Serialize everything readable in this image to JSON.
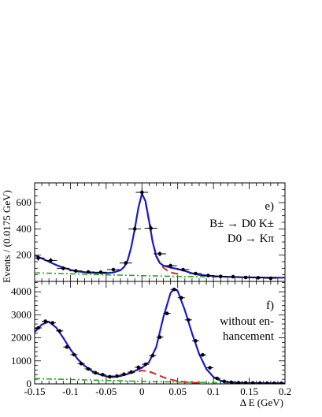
{
  "chart_data": {
    "type": "line",
    "xlabel": "Δ E (GeV)",
    "ylabel": "Events / (0.0175 GeV)",
    "xlim": [
      -0.15,
      0.2
    ],
    "x_ticks": [
      "-0.15",
      "-0.1",
      "-0.05",
      "0",
      "0.05",
      "0.1",
      "0.15",
      "0.2"
    ],
    "panels": [
      {
        "label": "e)",
        "annotation": [
          "B± → D0 K±",
          "D0 → Kπ"
        ],
        "ylim": [
          0,
          750
        ],
        "y_ticks": [
          "200",
          "400",
          "600"
        ],
        "points": [
          {
            "x": -0.145,
            "y": 178,
            "err": 20
          },
          {
            "x": -0.1275,
            "y": 160,
            "err": 18
          },
          {
            "x": -0.11,
            "y": 100,
            "err": 15
          },
          {
            "x": -0.0925,
            "y": 80,
            "err": 13
          },
          {
            "x": -0.075,
            "y": 72,
            "err": 12
          },
          {
            "x": -0.0575,
            "y": 70,
            "err": 12
          },
          {
            "x": -0.04,
            "y": 90,
            "err": 13
          },
          {
            "x": -0.0225,
            "y": 140,
            "err": 16
          },
          {
            "x": -0.01,
            "y": 400,
            "err": 25
          },
          {
            "x": 0.0,
            "y": 678,
            "err": 28
          },
          {
            "x": 0.0125,
            "y": 405,
            "err": 25
          },
          {
            "x": 0.025,
            "y": 210,
            "err": 18
          },
          {
            "x": 0.04,
            "y": 120,
            "err": 14
          },
          {
            "x": 0.0575,
            "y": 90,
            "err": 13
          },
          {
            "x": 0.075,
            "y": 60,
            "err": 11
          },
          {
            "x": 0.0925,
            "y": 45,
            "err": 10
          },
          {
            "x": 0.11,
            "y": 38,
            "err": 9
          },
          {
            "x": 0.1275,
            "y": 36,
            "err": 9
          },
          {
            "x": 0.145,
            "y": 30,
            "err": 8
          },
          {
            "x": 0.1625,
            "y": 28,
            "err": 8
          },
          {
            "x": 0.18,
            "y": 24,
            "err": 7
          }
        ],
        "series": [
          {
            "role": "total",
            "color": "#1a1acc",
            "x": [
              -0.15,
              -0.14,
              -0.13,
              -0.12,
              -0.11,
              -0.1,
              -0.09,
              -0.08,
              -0.07,
              -0.06,
              -0.05,
              -0.04,
              -0.03,
              -0.025,
              -0.02,
              -0.015,
              -0.01,
              -0.005,
              0.0,
              0.005,
              0.01,
              0.015,
              0.02,
              0.025,
              0.03,
              0.04,
              0.05,
              0.06,
              0.07,
              0.08,
              0.1,
              0.12,
              0.14,
              0.16,
              0.18,
              0.2
            ],
            "y": [
              200,
              175,
              150,
              125,
              105,
              88,
              76,
              70,
              66,
              64,
              63,
              68,
              85,
              110,
              160,
              260,
              400,
              560,
              668,
              610,
              460,
              300,
              190,
              140,
              120,
              105,
              95,
              80,
              62,
              50,
              40,
              35,
              32,
              30,
              29,
              28
            ]
          },
          {
            "role": "signal-tail",
            "color": "#dd2222",
            "x": [
              0.005,
              0.01,
              0.015,
              0.02,
              0.025,
              0.03,
              0.035,
              0.04,
              0.045,
              0.05,
              0.055
            ],
            "y": [
              600,
              450,
              300,
              200,
              140,
              105,
              85,
              70,
              62,
              58,
              56
            ]
          },
          {
            "role": "background",
            "color": "#22aa22",
            "x": [
              -0.15,
              -0.1,
              -0.05,
              0.0,
              0.05,
              0.1,
              0.15,
              0.2
            ],
            "y": [
              65,
              58,
              50,
              44,
              38,
              34,
              31,
              29
            ]
          }
        ]
      },
      {
        "label": "f)",
        "annotation": [
          "without en-",
          "hancement"
        ],
        "ylim": [
          0,
          4450
        ],
        "y_ticks": [
          "0",
          "1000",
          "2000",
          "3000",
          "4000"
        ],
        "points": [
          {
            "x": -0.145,
            "y": 2430,
            "err": 50
          },
          {
            "x": -0.135,
            "y": 2720,
            "err": 55
          },
          {
            "x": -0.125,
            "y": 2650,
            "err": 55
          },
          {
            "x": -0.115,
            "y": 2300,
            "err": 50
          },
          {
            "x": -0.105,
            "y": 1600,
            "err": 45
          },
          {
            "x": -0.095,
            "y": 1270,
            "err": 40
          },
          {
            "x": -0.085,
            "y": 880,
            "err": 35
          },
          {
            "x": -0.075,
            "y": 650,
            "err": 30
          },
          {
            "x": -0.065,
            "y": 480,
            "err": 28
          },
          {
            "x": -0.055,
            "y": 400,
            "err": 25
          },
          {
            "x": -0.045,
            "y": 310,
            "err": 22
          },
          {
            "x": -0.035,
            "y": 340,
            "err": 22
          },
          {
            "x": -0.025,
            "y": 420,
            "err": 25
          },
          {
            "x": -0.015,
            "y": 510,
            "err": 28
          },
          {
            "x": -0.005,
            "y": 720,
            "err": 30
          },
          {
            "x": 0.005,
            "y": 850,
            "err": 32
          },
          {
            "x": 0.015,
            "y": 1230,
            "err": 38
          },
          {
            "x": 0.025,
            "y": 2030,
            "err": 48
          },
          {
            "x": 0.035,
            "y": 3060,
            "err": 58
          },
          {
            "x": 0.045,
            "y": 4100,
            "err": 65
          },
          {
            "x": 0.055,
            "y": 3740,
            "err": 62
          },
          {
            "x": 0.065,
            "y": 2780,
            "err": 55
          },
          {
            "x": 0.075,
            "y": 1870,
            "err": 45
          },
          {
            "x": 0.085,
            "y": 1260,
            "err": 38
          },
          {
            "x": 0.095,
            "y": 700,
            "err": 30
          },
          {
            "x": 0.105,
            "y": 240,
            "err": 20
          },
          {
            "x": 0.115,
            "y": 110,
            "err": 15
          },
          {
            "x": 0.125,
            "y": 70,
            "err": 12
          },
          {
            "x": 0.135,
            "y": 50,
            "err": 10
          },
          {
            "x": 0.145,
            "y": 45,
            "err": 10
          },
          {
            "x": 0.155,
            "y": 40,
            "err": 9
          },
          {
            "x": 0.165,
            "y": 35,
            "err": 9
          },
          {
            "x": 0.175,
            "y": 32,
            "err": 8
          },
          {
            "x": 0.185,
            "y": 30,
            "err": 8
          },
          {
            "x": 0.195,
            "y": 28,
            "err": 8
          }
        ],
        "series": [
          {
            "role": "total",
            "color": "#1a1acc",
            "x": [
              -0.15,
              -0.14,
              -0.13,
              -0.12,
              -0.11,
              -0.1,
              -0.09,
              -0.08,
              -0.07,
              -0.06,
              -0.05,
              -0.04,
              -0.03,
              -0.02,
              -0.01,
              0.0,
              0.01,
              0.02,
              0.03,
              0.04,
              0.045,
              0.05,
              0.06,
              0.07,
              0.08,
              0.09,
              0.1,
              0.11,
              0.12,
              0.13,
              0.15,
              0.17,
              0.2
            ],
            "y": [
              2250,
              2580,
              2700,
              2450,
              2000,
              1500,
              1080,
              780,
              560,
              420,
              330,
              300,
              340,
              430,
              560,
              700,
              950,
              1600,
              2900,
              3950,
              4130,
              4030,
              3200,
              2200,
              1300,
              650,
              300,
              140,
              80,
              55,
              40,
              32,
              25
            ]
          },
          {
            "role": "signal-tail",
            "color": "#dd2222",
            "x": [
              -0.05,
              -0.03,
              -0.01,
              0.0,
              0.01,
              0.02,
              0.03,
              0.04,
              0.05,
              0.06,
              0.07,
              0.08
            ],
            "y": [
              310,
              370,
              510,
              580,
              540,
              420,
              290,
              190,
              120,
              80,
              55,
              45
            ]
          },
          {
            "role": "background",
            "color": "#22aa22",
            "x": [
              -0.15,
              -0.1,
              -0.05,
              0.0,
              0.05,
              0.1,
              0.15,
              0.2
            ],
            "y": [
              230,
              190,
              150,
              110,
              80,
              55,
              35,
              25
            ]
          }
        ]
      }
    ]
  }
}
